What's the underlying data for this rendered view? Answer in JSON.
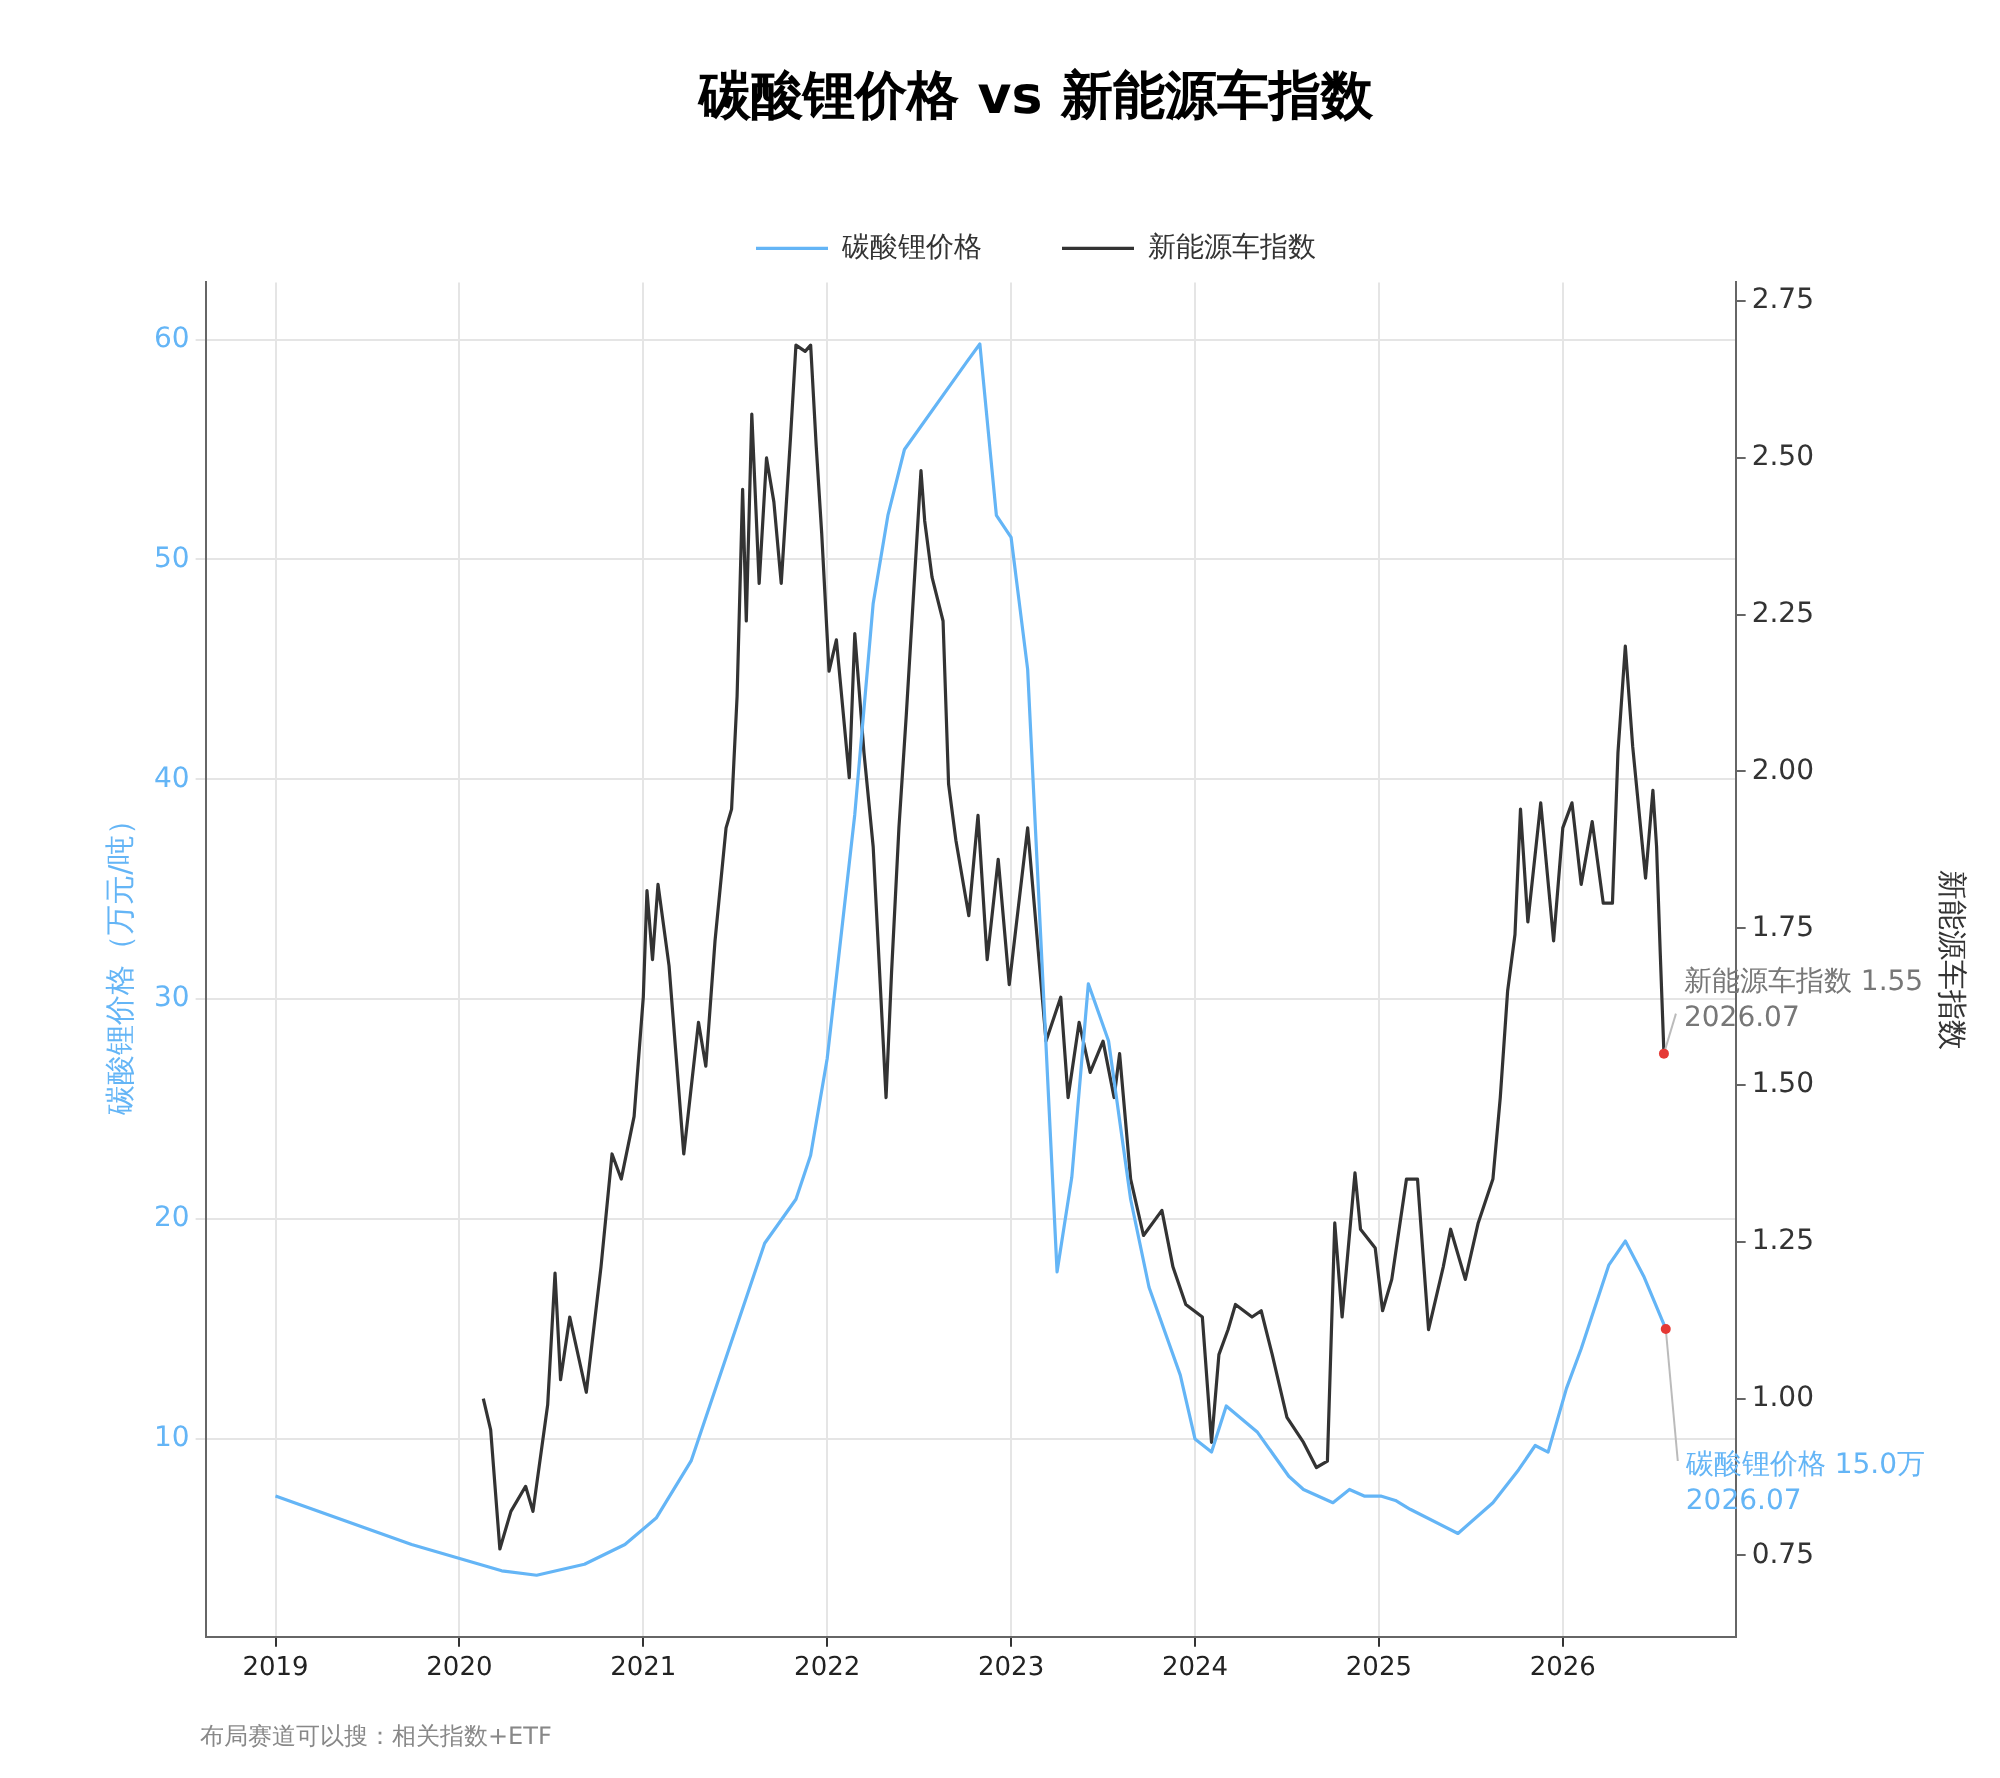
{
  "chart_data": {
    "type": "line",
    "title": "碳酸锂价格 vs 新能源车指数",
    "ylabel": "碳酸锂价格（万元/吨）",
    "y2label": "新能源车指数",
    "xlim": [
      2018.62,
      2026.94
    ],
    "xticks": [
      2019,
      2020,
      2021,
      2022,
      2023,
      2024,
      2025,
      2026
    ],
    "ylim": [
      1,
      62.6
    ],
    "yticks": [
      10,
      20,
      30,
      40,
      50,
      60
    ],
    "y2lim": [
      0.62,
      2.78
    ],
    "y2ticks": [
      0.75,
      {
        "value": 1,
        "label": "1.00"
      },
      1.25,
      {
        "value": 1.5,
        "label": "1.50"
      },
      1.75,
      {
        "value": 2,
        "label": "2.00"
      },
      2.25,
      {
        "value": 2.5,
        "label": "2.50"
      },
      2.75
    ],
    "grid": true,
    "legend": "top",
    "marker": "none",
    "line_style": "solid",
    "series": [
      {
        "name": "碳酸锂价格",
        "color": "#64b5f6",
        "x": [
          2019.0,
          2019.74,
          2020.23,
          2020.42,
          2020.68,
          2020.9,
          2021.07,
          2021.26,
          2021.66,
          2021.83,
          2021.91,
          2022.0,
          2022.15,
          2022.25,
          2022.33,
          2022.42,
          2022.76,
          2022.83,
          2022.92,
          2023.0,
          2023.09,
          2023.25,
          2023.33,
          2023.42,
          2023.53,
          2023.65,
          2023.75,
          2023.92,
          2024.0,
          2024.09,
          2024.17,
          2024.34,
          2024.51,
          2024.59,
          2024.75,
          2024.84,
          2024.92,
          2025.01,
          2025.09,
          2025.17,
          2025.43,
          2025.62,
          2025.76,
          2025.85,
          2025.92,
          2026.02,
          2026.1,
          2026.25,
          2026.34,
          2026.44,
          2026.56
        ],
        "values": [
          7.4,
          5.2,
          4.0,
          3.8,
          4.3,
          5.2,
          6.4,
          9.0,
          18.9,
          20.9,
          22.9,
          27.3,
          38.4,
          48,
          52,
          55,
          59,
          59.8,
          52,
          51,
          45,
          17.6,
          21.9,
          30.7,
          28.1,
          20.9,
          16.9,
          12.9,
          10.0,
          9.4,
          11.5,
          10.3,
          8.3,
          7.7,
          7.1,
          7.7,
          7.4,
          7.4,
          7.2,
          6.8,
          5.7,
          7.1,
          8.6,
          9.7,
          9.4,
          12.3,
          14.1,
          17.9,
          19.0,
          17.4,
          15.0
        ]
      },
      {
        "name": "新能源车指数",
        "color": "#333333",
        "axis": "y2",
        "x": [
          2020.13,
          2020.17,
          2020.22,
          2020.28,
          2020.36,
          2020.4,
          2020.48,
          2020.52,
          2020.55,
          2020.6,
          2020.69,
          2020.77,
          2020.83,
          2020.88,
          2020.95,
          2021.0,
          2021.02,
          2021.05,
          2021.08,
          2021.14,
          2021.18,
          2021.22,
          2021.3,
          2021.34,
          2021.39,
          2021.45,
          2021.48,
          2021.51,
          2021.54,
          2021.56,
          2021.59,
          2021.63,
          2021.67,
          2021.71,
          2021.75,
          2021.8,
          2021.83,
          2021.88,
          2021.91,
          2021.94,
          2021.97,
          2022.01,
          2022.05,
          2022.12,
          2022.15,
          2022.2,
          2022.25,
          2022.32,
          2022.35,
          2022.39,
          2022.43,
          2022.51,
          2022.53,
          2022.57,
          2022.63,
          2022.66,
          2022.7,
          2022.77,
          2022.82,
          2022.87,
          2022.93,
          2022.99,
          2023.09,
          2023.14,
          2023.19,
          2023.27,
          2023.31,
          2023.37,
          2023.43,
          2023.5,
          2023.56,
          2023.59,
          2023.65,
          2023.72,
          2023.82,
          2023.88,
          2023.95,
          2024.04,
          2024.09,
          2024.13,
          2024.18,
          2024.22,
          2024.31,
          2024.36,
          2024.42,
          2024.5,
          2024.59,
          2024.66,
          2024.72,
          2024.76,
          2024.8,
          2024.87,
          2024.9,
          2024.98,
          2025.02,
          2025.07,
          2025.15,
          2025.21,
          2025.27,
          2025.35,
          2025.39,
          2025.47,
          2025.54,
          2025.62,
          2025.66,
          2025.7,
          2025.74,
          2025.77,
          2025.81,
          2025.88,
          2025.95,
          2026.0,
          2026.05,
          2026.1,
          2026.16,
          2026.22,
          2026.27,
          2026.3,
          2026.34,
          2026.38,
          2026.45,
          2026.49,
          2026.51,
          2026.53,
          2026.55
        ],
        "values": [
          1.0,
          0.95,
          0.76,
          0.82,
          0.86,
          0.82,
          0.99,
          1.2,
          1.03,
          1.13,
          1.01,
          1.21,
          1.39,
          1.35,
          1.45,
          1.64,
          1.81,
          1.7,
          1.82,
          1.69,
          1.54,
          1.39,
          1.6,
          1.53,
          1.73,
          1.91,
          1.94,
          2.12,
          2.45,
          2.24,
          2.57,
          2.3,
          2.5,
          2.43,
          2.3,
          2.53,
          2.68,
          2.67,
          2.68,
          2.52,
          2.38,
          2.16,
          2.21,
          1.99,
          2.22,
          2.03,
          1.88,
          1.48,
          1.68,
          1.91,
          2.09,
          2.48,
          2.4,
          2.31,
          2.24,
          1.98,
          1.89,
          1.77,
          1.93,
          1.7,
          1.86,
          1.66,
          1.91,
          1.74,
          1.57,
          1.64,
          1.48,
          1.6,
          1.52,
          1.57,
          1.48,
          1.55,
          1.35,
          1.26,
          1.3,
          1.21,
          1.15,
          1.13,
          0.93,
          1.07,
          1.11,
          1.15,
          1.13,
          1.14,
          1.07,
          0.97,
          0.93,
          0.89,
          0.9,
          1.28,
          1.13,
          1.36,
          1.27,
          1.24,
          1.14,
          1.19,
          1.35,
          1.35,
          1.11,
          1.21,
          1.27,
          1.19,
          1.28,
          1.35,
          1.48,
          1.65,
          1.74,
          1.94,
          1.76,
          1.95,
          1.73,
          1.91,
          1.95,
          1.82,
          1.92,
          1.79,
          1.79,
          2.03,
          2.2,
          2.04,
          1.83,
          1.97,
          1.88,
          1.71,
          1.55
        ]
      }
    ],
    "annotations": [
      {
        "text": "碳酸锂价格 15.0万\n2026.07",
        "x": 2026.56,
        "y": 15.0
      },
      "新能源车指数 1.55\n2026.07",
      "布局赛道可以搜：相关指数+ETF"
    ]
  }
}
